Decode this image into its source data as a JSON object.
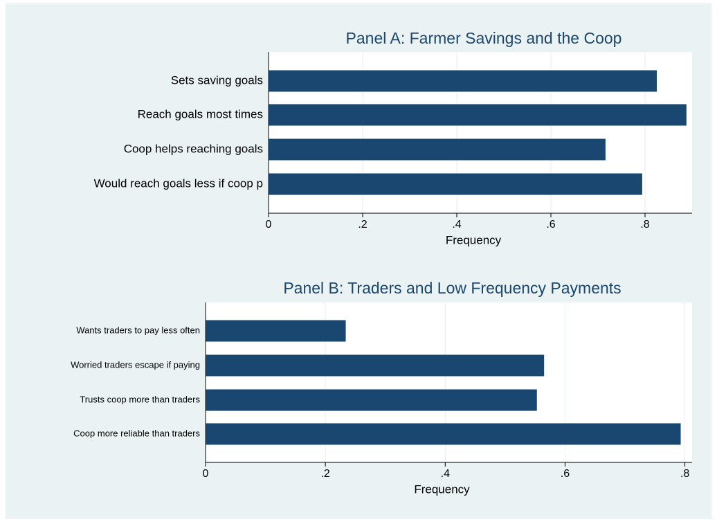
{
  "chart_data": [
    {
      "type": "barh",
      "title": "Panel A: Farmer Savings and the Coop",
      "xlabel": "Frequency",
      "categories": [
        "Sets saving goals",
        "Reach goals most times",
        "Coop helps reaching goals",
        "Would reach goals less if coop p"
      ],
      "values": [
        0.825,
        0.888,
        0.716,
        0.794
      ],
      "color": "#1a476f",
      "xlim": [
        0,
        0.9
      ],
      "xticks": [
        0,
        {
          "value": 0.2,
          "label": ".2"
        },
        {
          "value": 0.4,
          "label": ".4"
        },
        {
          "value": 0.6,
          "label": ".6"
        },
        {
          "value": 0.8,
          "label": ".8"
        }
      ],
      "grid": true
    },
    {
      "type": "barh",
      "title": "Panel B: Traders and Low Frequency Payments",
      "xlabel": "Frequency",
      "categories": [
        "Wants traders to pay less often",
        "Worried traders escape if paying",
        "Trusts coop more than traders",
        "Coop more reliable than traders"
      ],
      "values": [
        0.234,
        0.565,
        0.553,
        0.793
      ],
      "color": "#1a476f",
      "xlim": [
        0,
        0.812
      ],
      "xticks": [
        0,
        {
          "value": 0.2,
          "label": ".2"
        },
        {
          "value": 0.4,
          "label": ".4"
        },
        {
          "value": 0.6,
          "label": ".6"
        },
        {
          "value": 0.8,
          "label": ".8"
        }
      ],
      "grid": true
    }
  ]
}
